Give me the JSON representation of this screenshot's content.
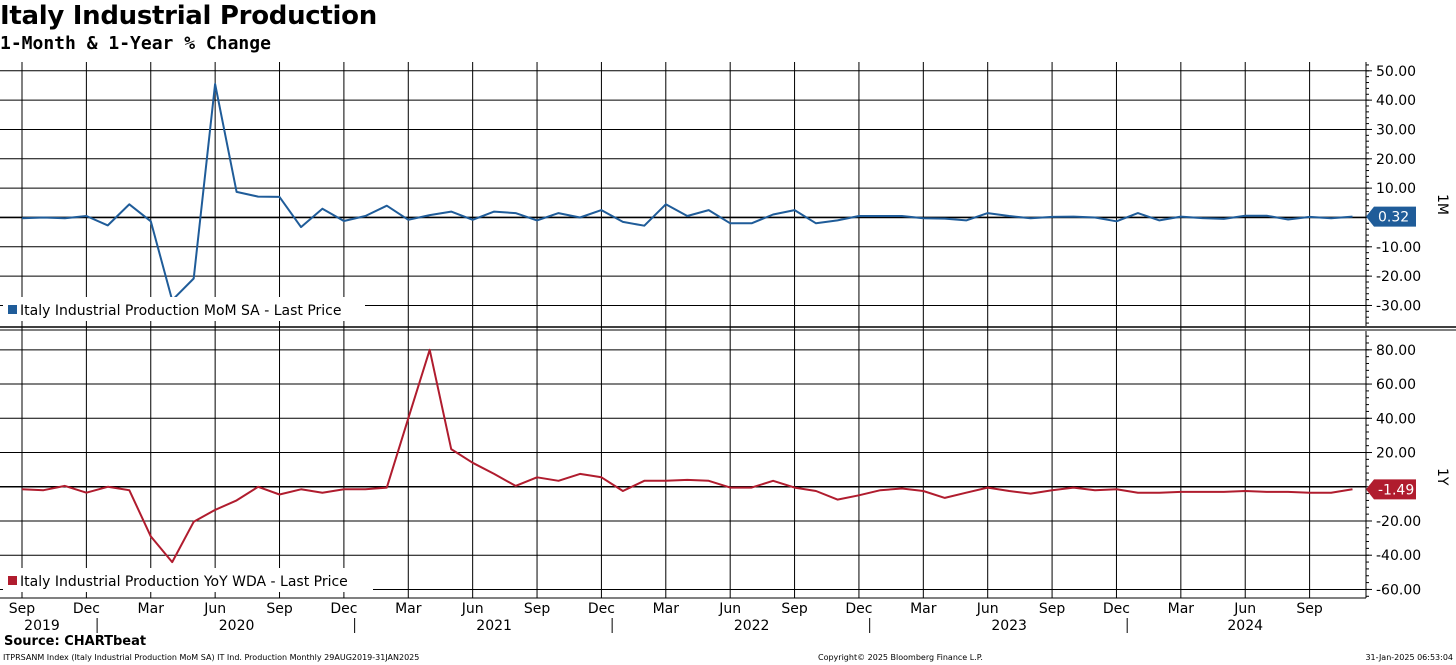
{
  "title": "Italy Industrial Production",
  "subtitle": "1-Month & 1-Year % Change",
  "source": "Source: CHARTbeat",
  "footer": {
    "left": "ITPRSANM Index (Italy Industrial Production MoM SA) IT Ind. Production  Monthly 29AUG2019-31JAN2025",
    "center": "Copyright© 2025 Bloomberg Finance L.P.",
    "right": "31-Jan-2025 06:53:04"
  },
  "colors": {
    "mom": "#1f5c99",
    "yoy": "#b01c2e",
    "grid": "#000000",
    "background": "#ffffff"
  },
  "x_axis": {
    "month_ticks": [
      "Sep",
      "Dec",
      "Mar",
      "Jun",
      "Sep",
      "Dec",
      "Mar",
      "Jun",
      "Sep",
      "Dec",
      "Mar",
      "Jun",
      "Sep",
      "Dec",
      "Mar",
      "Jun",
      "Sep",
      "Dec",
      "Mar",
      "Jun",
      "Sep"
    ],
    "years": [
      "2019",
      "2020",
      "2021",
      "2022",
      "2023",
      "2024"
    ]
  },
  "chart_data": [
    {
      "type": "line",
      "panel_label": "1M",
      "last_value_label": "0.32",
      "x": [
        "2019-09",
        "2019-10",
        "2019-11",
        "2019-12",
        "2020-01",
        "2020-02",
        "2020-03",
        "2020-04",
        "2020-05",
        "2020-06",
        "2020-07",
        "2020-08",
        "2020-09",
        "2020-10",
        "2020-11",
        "2020-12",
        "2021-01",
        "2021-02",
        "2021-03",
        "2021-04",
        "2021-05",
        "2021-06",
        "2021-07",
        "2021-08",
        "2021-09",
        "2021-10",
        "2021-11",
        "2021-12",
        "2022-01",
        "2022-02",
        "2022-03",
        "2022-04",
        "2022-05",
        "2022-06",
        "2022-07",
        "2022-08",
        "2022-09",
        "2022-10",
        "2022-11",
        "2022-12",
        "2023-01",
        "2023-02",
        "2023-03",
        "2023-04",
        "2023-05",
        "2023-06",
        "2023-07",
        "2023-08",
        "2023-09",
        "2023-10",
        "2023-11",
        "2023-12",
        "2024-01",
        "2024-02",
        "2024-03",
        "2024-04",
        "2024-05",
        "2024-06",
        "2024-07",
        "2024-08",
        "2024-09",
        "2024-10",
        "2024-11"
      ],
      "series": [
        {
          "name": "Italy Industrial Production MoM SA - Last Price",
          "values": [
            -0.3,
            0.0,
            -0.3,
            0.5,
            -2.7,
            4.5,
            -1.3,
            -28.2,
            -20.8,
            45.5,
            8.7,
            7.1,
            7.0,
            -3.3,
            3.0,
            -1.2,
            0.5,
            4.0,
            -0.8,
            0.8,
            2.0,
            -0.8,
            2.0,
            1.5,
            -1.0,
            1.5,
            0.0,
            2.5,
            -1.5,
            -2.8,
            4.5,
            0.5,
            2.5,
            -2.0,
            -2.0,
            1.0,
            2.5,
            -2.0,
            -1.0,
            0.5,
            0.5,
            0.5,
            -0.3,
            -0.4,
            -1.0,
            1.5,
            0.5,
            -0.3,
            0.2,
            0.3,
            0.0,
            -1.3,
            1.5,
            -1.0,
            0.3,
            -0.2,
            -0.5,
            0.6,
            0.6,
            -0.7,
            0.2,
            -0.3,
            0.3
          ]
        }
      ],
      "ylim": [
        -37,
        53
      ],
      "yticks": [
        "50.00",
        "40.00",
        "30.00",
        "20.00",
        "10.00",
        "-10.00",
        "-20.00",
        "-30.00"
      ],
      "yticks_values": [
        50,
        40,
        30,
        20,
        10,
        -10,
        -20,
        -30
      ]
    },
    {
      "type": "line",
      "panel_label": "1Y",
      "last_value_label": "-1.49",
      "x": [
        "2019-09",
        "2019-10",
        "2019-11",
        "2019-12",
        "2020-01",
        "2020-02",
        "2020-03",
        "2020-04",
        "2020-05",
        "2020-06",
        "2020-07",
        "2020-08",
        "2020-09",
        "2020-10",
        "2020-11",
        "2020-12",
        "2021-01",
        "2021-02",
        "2021-03",
        "2021-04",
        "2021-05",
        "2021-06",
        "2021-07",
        "2021-08",
        "2021-09",
        "2021-10",
        "2021-11",
        "2021-12",
        "2022-01",
        "2022-02",
        "2022-03",
        "2022-04",
        "2022-05",
        "2022-06",
        "2022-07",
        "2022-08",
        "2022-09",
        "2022-10",
        "2022-11",
        "2022-12",
        "2023-01",
        "2023-02",
        "2023-03",
        "2023-04",
        "2023-05",
        "2023-06",
        "2023-07",
        "2023-08",
        "2023-09",
        "2023-10",
        "2023-11",
        "2023-12",
        "2024-01",
        "2024-02",
        "2024-03",
        "2024-04",
        "2024-05",
        "2024-06",
        "2024-07",
        "2024-08",
        "2024-09",
        "2024-10",
        "2024-11"
      ],
      "series": [
        {
          "name": "Italy Industrial Production YoY WDA - Last Price",
          "values": [
            -1.5,
            -2.0,
            0.5,
            -3.5,
            0.0,
            -2.0,
            -29.0,
            -44.0,
            -20.5,
            -13.5,
            -8.0,
            0.0,
            -4.5,
            -1.5,
            -3.5,
            -1.5,
            -1.5,
            -0.5,
            40.0,
            80.0,
            22.0,
            14.0,
            7.5,
            0.5,
            5.5,
            3.5,
            7.5,
            5.5,
            -2.5,
            3.5,
            3.5,
            4.0,
            3.5,
            -0.5,
            -0.5,
            3.5,
            -0.5,
            -2.5,
            -7.5,
            -5.0,
            -2.0,
            -1.0,
            -2.5,
            -6.5,
            -3.5,
            -0.5,
            -2.5,
            -4.0,
            -2.0,
            -0.5,
            -2.0,
            -1.5,
            -3.5,
            -3.5,
            -3.0,
            -3.0,
            -3.0,
            -2.5,
            -3.0,
            -3.0,
            -3.5,
            -3.5,
            -1.5
          ]
        }
      ],
      "ylim": [
        -65,
        91
      ],
      "yticks": [
        "80.00",
        "60.00",
        "40.00",
        "20.00",
        "-20.00",
        "-40.00",
        "-60.00"
      ],
      "yticks_values": [
        80,
        60,
        40,
        20,
        -20,
        -40,
        -60
      ]
    }
  ]
}
